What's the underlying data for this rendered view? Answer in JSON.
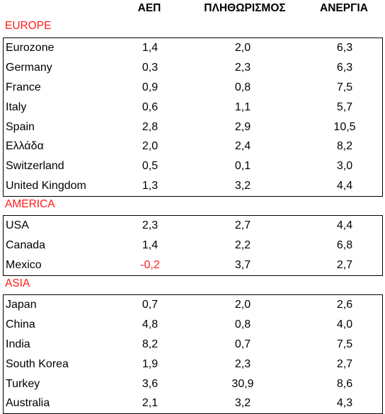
{
  "headers": {
    "gdp": "ΑΕΠ",
    "inflation": "ΠΛΗΘΩΡΙΣΜΟΣ",
    "unemployment": "ΑΝΕΡΓΙΑ"
  },
  "colors": {
    "section_title": "#ff1a1a",
    "negative_value": "#ff1a1a"
  },
  "sections": [
    {
      "title": "EUROPE",
      "rows": [
        {
          "name": "Eurozone",
          "gdp": "1,4",
          "inflation": "2,0",
          "unemployment": "6,3"
        },
        {
          "name": "Germany",
          "gdp": "0,3",
          "inflation": "2,3",
          "unemployment": "6,3"
        },
        {
          "name": "France",
          "gdp": "0,9",
          "inflation": "0,8",
          "unemployment": "7,5"
        },
        {
          "name": "Italy",
          "gdp": "0,6",
          "inflation": "1,1",
          "unemployment": "5,7"
        },
        {
          "name": "Spain",
          "gdp": "2,8",
          "inflation": "2,9",
          "unemployment": "10,5"
        },
        {
          "name": "Ελλάδα",
          "gdp": "2,0",
          "inflation": "2,4",
          "unemployment": "8,2"
        },
        {
          "name": "Switzerland",
          "gdp": "0,5",
          "inflation": "0,1",
          "unemployment": "3,0"
        },
        {
          "name": "United Kingdom",
          "gdp": "1,3",
          "inflation": "3,2",
          "unemployment": "4,4"
        }
      ]
    },
    {
      "title": "AMERICA",
      "rows": [
        {
          "name": "USA",
          "gdp": "2,3",
          "inflation": "2,7",
          "unemployment": "4,4"
        },
        {
          "name": "Canada",
          "gdp": "1,4",
          "inflation": "2,2",
          "unemployment": "6,8"
        },
        {
          "name": "Mexico",
          "gdp": "-0,2",
          "inflation": "3,7",
          "unemployment": "2,7"
        }
      ]
    },
    {
      "title": "ASIA",
      "rows": [
        {
          "name": "Japan",
          "gdp": "0,7",
          "inflation": "2,0",
          "unemployment": "2,6"
        },
        {
          "name": "China",
          "gdp": "4,8",
          "inflation": "0,8",
          "unemployment": "4,0"
        },
        {
          "name": "India",
          "gdp": "8,2",
          "inflation": "0,7",
          "unemployment": "7,5"
        },
        {
          "name": "South Korea",
          "gdp": "1,9",
          "inflation": "2,3",
          "unemployment": "2,7"
        },
        {
          "name": "Turkey",
          "gdp": "3,6",
          "inflation": "30,9",
          "unemployment": "8,6"
        },
        {
          "name": "Australia",
          "gdp": "2,1",
          "inflation": "3,2",
          "unemployment": "4,3"
        }
      ]
    }
  ]
}
